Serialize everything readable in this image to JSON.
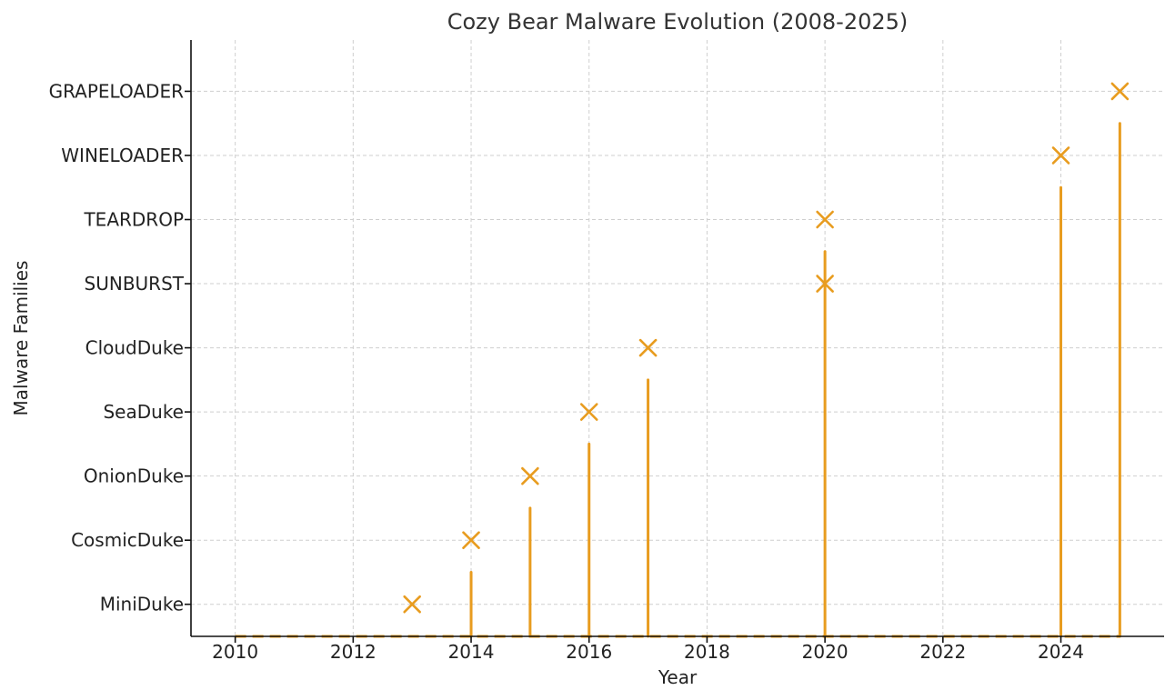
{
  "chart_data": {
    "type": "scatter",
    "title": "Cozy Bear Malware Evolution (2008-2025)",
    "xlabel": "Year",
    "ylabel": "Malware Families",
    "xlim": [
      2009.25,
      2025.75
    ],
    "ylim": [
      -0.5,
      8.8
    ],
    "x_ticks": [
      2010,
      2012,
      2014,
      2016,
      2018,
      2020,
      2022,
      2024
    ],
    "y_categories": [
      "MiniDuke",
      "CosmicDuke",
      "OnionDuke",
      "SeaDuke",
      "CloudDuke",
      "SUNBURST",
      "TEARDROP",
      "WINELOADER",
      "GRAPELOADER"
    ],
    "points": [
      {
        "x": 2013,
        "y": "MiniDuke"
      },
      {
        "x": 2014,
        "y": "CosmicDuke"
      },
      {
        "x": 2015,
        "y": "OnionDuke"
      },
      {
        "x": 2016,
        "y": "SeaDuke"
      },
      {
        "x": 2017,
        "y": "CloudDuke"
      },
      {
        "x": 2020,
        "y": "SUNBURST"
      },
      {
        "x": 2020,
        "y": "TEARDROP"
      },
      {
        "x": 2024,
        "y": "WINELOADER"
      },
      {
        "x": 2025,
        "y": "GRAPELOADER"
      }
    ],
    "stems": [
      {
        "x": 2014,
        "y": 0.5
      },
      {
        "x": 2015,
        "y": 1.5
      },
      {
        "x": 2016,
        "y": 2.5
      },
      {
        "x": 2017,
        "y": 3.5
      },
      {
        "x": 2020,
        "y": 5.5
      },
      {
        "x": 2024,
        "y": 6.5
      },
      {
        "x": 2025,
        "y": 7.5
      }
    ],
    "baseline": {
      "from": 2010,
      "to": 2025,
      "y": -0.5
    },
    "grid": true,
    "colors": {
      "accent": "#e89c1f",
      "grid": "#cfcfcf",
      "axis": "#111111",
      "text": "#222222"
    }
  }
}
